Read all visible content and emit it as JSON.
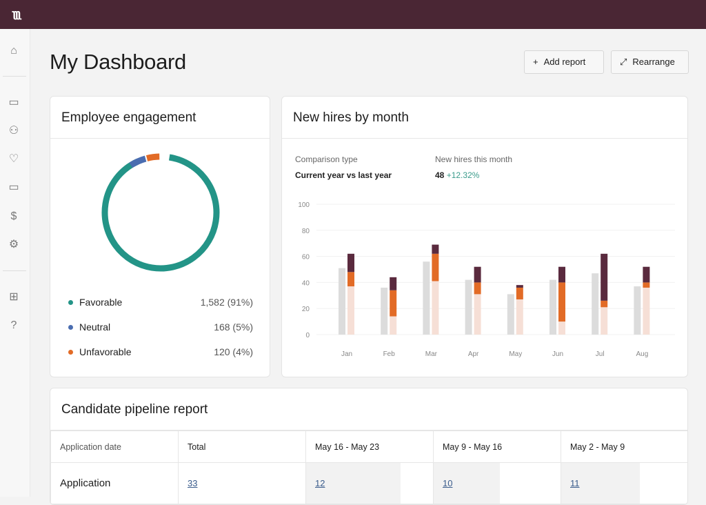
{
  "app": {
    "logo": "RRR"
  },
  "sidebar": {
    "items": [
      "home-icon",
      "briefcase-icon",
      "people-icon",
      "heart-icon",
      "laptop-icon",
      "dollar-icon",
      "gear-icon",
      "apps-add-icon",
      "help-icon"
    ]
  },
  "header": {
    "title": "My Dashboard",
    "add_report": "Add report",
    "rearrange": "Rearrange"
  },
  "engagement": {
    "title": "Employee engagement",
    "items": [
      {
        "label": "Favorable",
        "value": "1,582 (91%)",
        "pct": 91,
        "color": "#239487"
      },
      {
        "label": "Neutral",
        "value": "168 (5%)",
        "pct": 5,
        "color": "#4a6db0"
      },
      {
        "label": "Unfavorable",
        "value": "120 (4%)",
        "pct": 4,
        "color": "#e26b26"
      }
    ]
  },
  "hires": {
    "title": "New hires by month",
    "comparison_label": "Comparison type",
    "comparison_value": "Current year vs last year",
    "month_label": "New hires this month",
    "month_value": "48",
    "month_change": "+12.32%"
  },
  "chart_data": {
    "type": "bar",
    "categories": [
      "Jan",
      "Feb",
      "Mar",
      "Apr",
      "May",
      "Jun",
      "Jul",
      "Aug"
    ],
    "ylim": [
      0,
      100
    ],
    "yticks": [
      0,
      20,
      40,
      60,
      80,
      100
    ],
    "grid": true,
    "series": [
      {
        "values": [
          51,
          36,
          56,
          42,
          31,
          42,
          47,
          37
        ],
        "color": "#dcdcdc"
      },
      {
        "values": [
          37,
          14,
          41,
          31,
          27,
          10,
          21,
          36
        ],
        "color": "#f6dfd6",
        "stack": "current"
      },
      {
        "values": [
          11,
          20,
          21,
          9,
          9,
          30,
          5,
          4
        ],
        "color": "#e26b26",
        "stack": "current"
      },
      {
        "values": [
          14,
          10,
          7,
          12,
          2,
          12,
          36,
          12
        ],
        "color": "#5a2a3e",
        "stack": "current"
      }
    ]
  },
  "pipeline": {
    "title": "Candidate pipeline report",
    "headers": [
      "Application date",
      "Total",
      "May 16 - May 23",
      "May 9 - May 16",
      "May 2 - May 9"
    ],
    "rows": [
      {
        "label": "Application",
        "values": [
          "33",
          "12",
          "10",
          "11"
        ]
      }
    ]
  }
}
